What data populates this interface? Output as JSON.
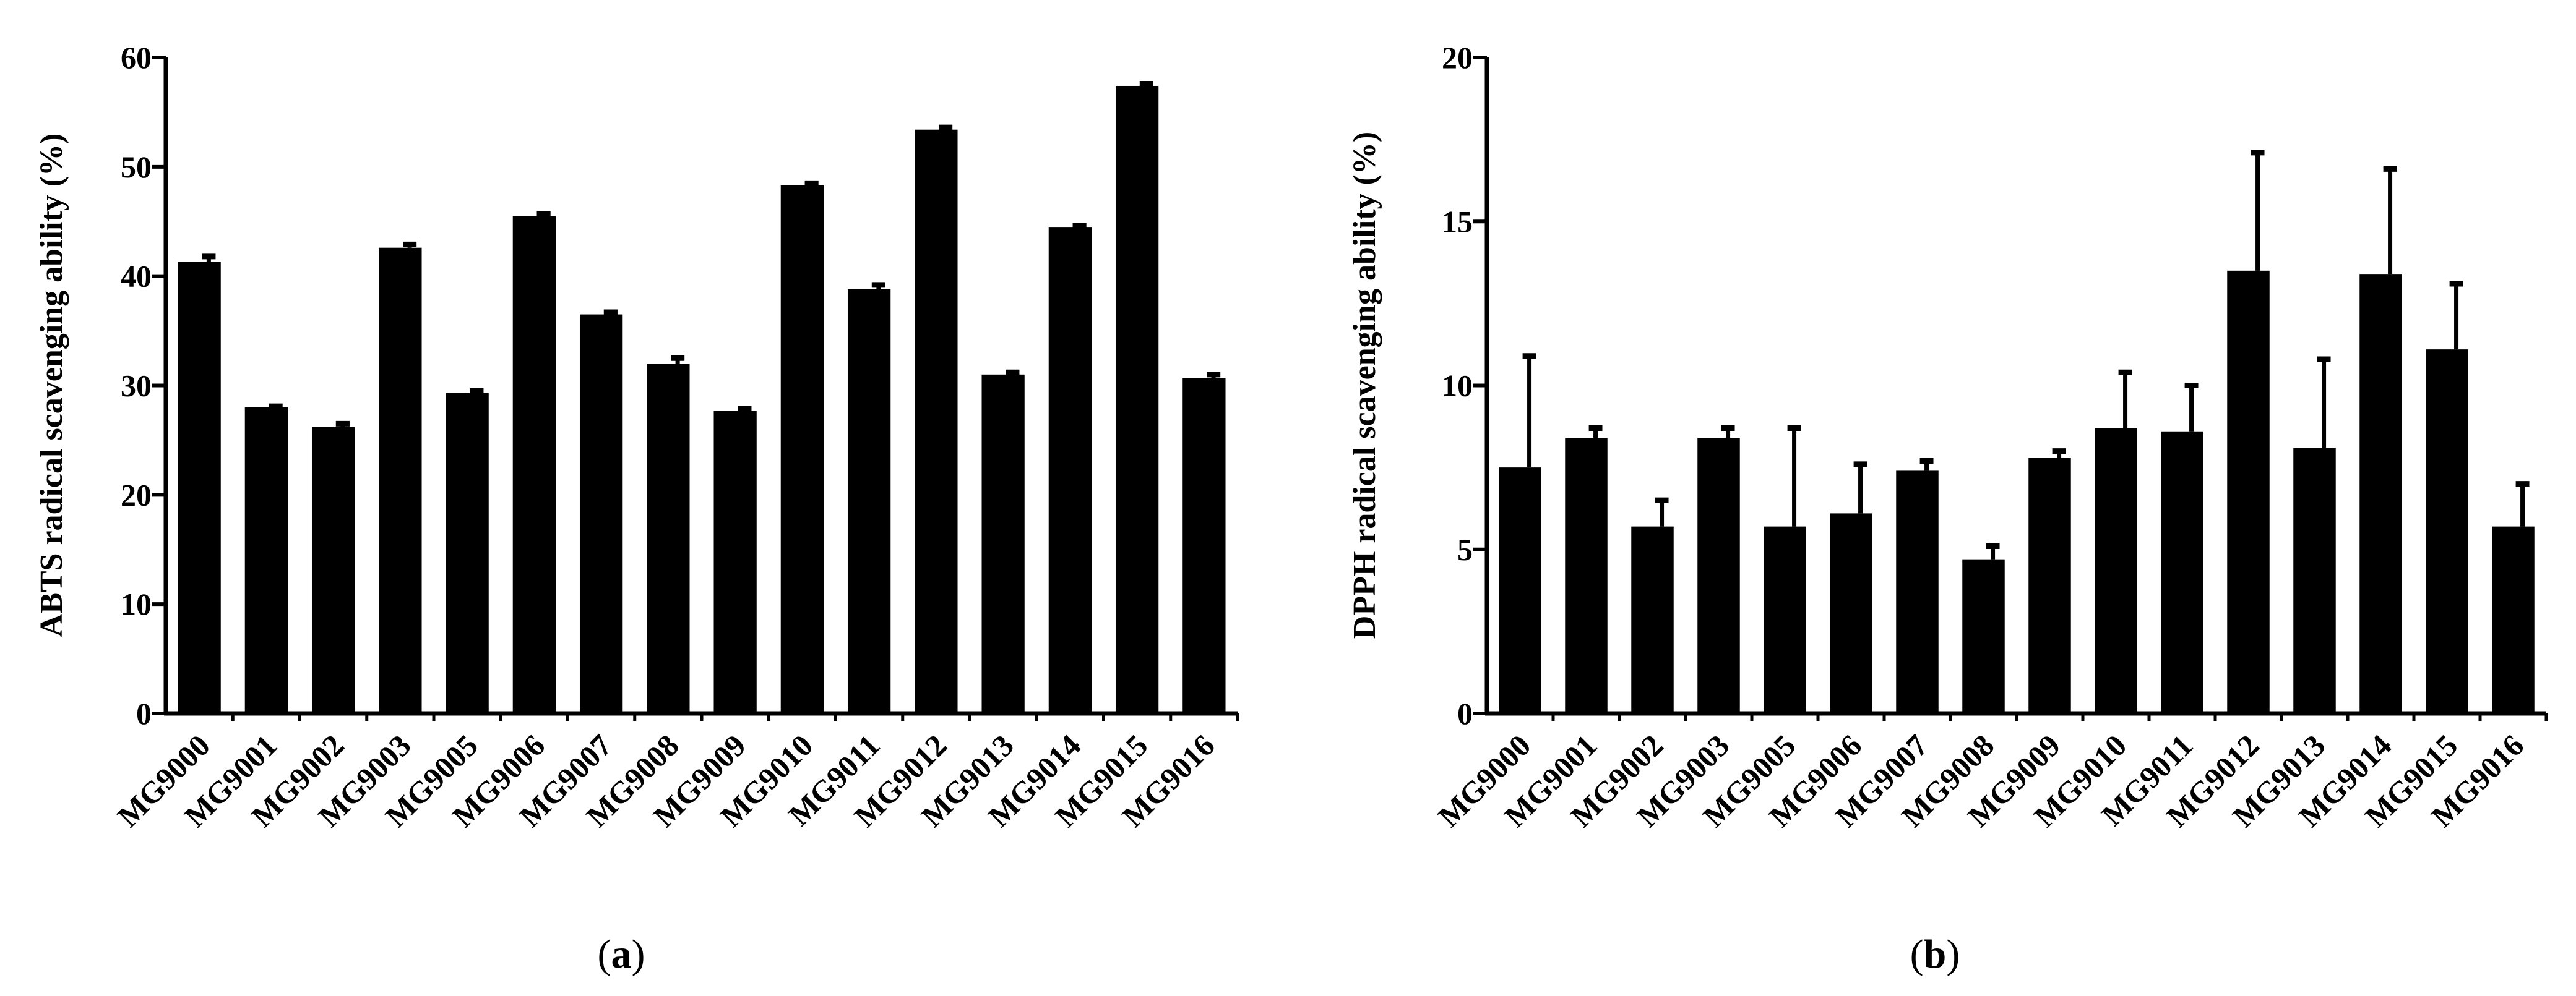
{
  "chart_data": [
    {
      "type": "bar",
      "panel": "a",
      "ylabel": "ABTS radical scavenging ability (%)",
      "xlabel": "",
      "ylim": [
        0,
        60
      ],
      "yticks": [
        0,
        10,
        20,
        30,
        40,
        50,
        60
      ],
      "categories": [
        "MG9000",
        "MG9001",
        "MG9002",
        "MG9003",
        "MG9005",
        "MG9006",
        "MG9007",
        "MG9008",
        "MG9009",
        "MG9010",
        "MG9011",
        "MG9012",
        "MG9013",
        "MG9014",
        "MG9015",
        "MG9016"
      ],
      "values": [
        41.3,
        28.0,
        26.2,
        42.6,
        29.3,
        45.5,
        36.5,
        32.0,
        27.7,
        48.3,
        38.8,
        53.4,
        31.0,
        44.5,
        57.4,
        30.7
      ],
      "errors": [
        0.5,
        0.1,
        0.3,
        0.3,
        0.2,
        0.2,
        0.2,
        0.5,
        0.2,
        0.2,
        0.4,
        0.2,
        0.2,
        0.1,
        0.2,
        0.3
      ],
      "color": "#000000",
      "grid": false
    },
    {
      "type": "bar",
      "panel": "b",
      "ylabel": "DPPH radical scavenging ability (%)",
      "xlabel": "",
      "ylim": [
        0,
        20
      ],
      "yticks": [
        0,
        5,
        10,
        15,
        20
      ],
      "categories": [
        "MG9000",
        "MG9001",
        "MG9002",
        "MG9003",
        "MG9005",
        "MG9006",
        "MG9007",
        "MG9008",
        "MG9009",
        "MG9010",
        "MG9011",
        "MG9012",
        "MG9013",
        "MG9014",
        "MG9015",
        "MG9016"
      ],
      "values": [
        7.5,
        8.4,
        5.7,
        8.4,
        5.7,
        6.1,
        7.4,
        4.7,
        7.8,
        8.7,
        8.6,
        13.5,
        8.1,
        13.4,
        11.1,
        5.7
      ],
      "errors": [
        3.4,
        0.3,
        0.8,
        0.3,
        3.0,
        1.5,
        0.3,
        0.4,
        0.2,
        1.7,
        1.4,
        3.6,
        2.7,
        3.2,
        2.0,
        1.3
      ],
      "color": "#000000",
      "grid": false
    }
  ],
  "panel_labels": [
    {
      "open": "(",
      "letter": "a",
      "close": ")"
    },
    {
      "open": "(",
      "letter": "b",
      "close": ")"
    }
  ]
}
